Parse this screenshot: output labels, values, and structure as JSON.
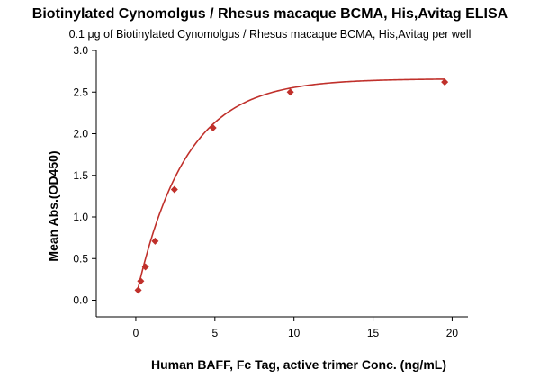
{
  "chart_data": {
    "type": "scatter",
    "title": "Biotinylated Cynomolgus / Rhesus macaque BCMA, His,Avitag ELISA",
    "subtitle": "0.1 μg of Biotinylated Cynomolgus / Rhesus macaque BCMA, His,Avitag per well",
    "xlabel": "Human BAFF, Fc Tag, active trimer Conc. (ng/mL)",
    "ylabel": "Mean Abs.(OD450)",
    "xlim": [
      -2.5,
      21
    ],
    "ylim": [
      -0.2,
      3.0
    ],
    "xticks": [
      0,
      5,
      10,
      15,
      20
    ],
    "yticks": [
      0.0,
      0.5,
      1.0,
      1.5,
      2.0,
      2.5,
      3.0
    ],
    "xtick_labels": [
      "0",
      "5",
      "10",
      "15",
      "20"
    ],
    "ytick_labels": [
      "0.0",
      "0.5",
      "1.0",
      "1.5",
      "2.0",
      "2.5",
      "3.0"
    ],
    "grid": false,
    "series": [
      {
        "points": [
          {
            "x": 0.15,
            "y": 0.12
          },
          {
            "x": 0.31,
            "y": 0.23
          },
          {
            "x": 0.61,
            "y": 0.4
          },
          {
            "x": 1.22,
            "y": 0.71
          },
          {
            "x": 2.44,
            "y": 1.33
          },
          {
            "x": 4.88,
            "y": 2.07
          },
          {
            "x": 9.77,
            "y": 2.5
          },
          {
            "x": 19.53,
            "y": 2.62
          }
        ],
        "fit": "four-parameter logistic",
        "color": "#C0302B"
      }
    ]
  }
}
